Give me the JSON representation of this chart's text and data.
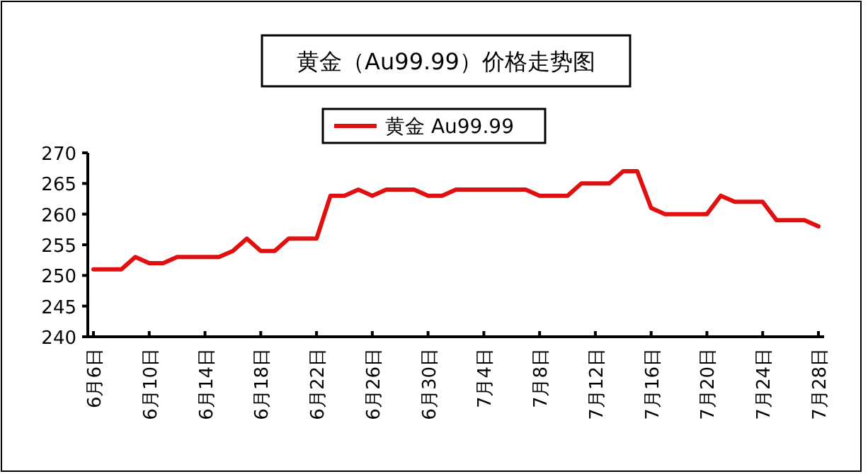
{
  "chart_data": {
    "type": "line",
    "title": "黄金（Au99.99）价格走势图",
    "categories": [
      "6月6日",
      null,
      null,
      null,
      "6月10日",
      null,
      null,
      null,
      "6月14日",
      null,
      null,
      null,
      "6月18日",
      null,
      null,
      null,
      "6月22日",
      null,
      null,
      null,
      "6月26日",
      null,
      null,
      null,
      "6月30日",
      null,
      null,
      null,
      "7月4日",
      null,
      null,
      null,
      "7月8日",
      null,
      null,
      null,
      "7月12日",
      null,
      null,
      null,
      "7月16日",
      null,
      null,
      null,
      "7月20日",
      null,
      null,
      null,
      "7月24日",
      null,
      null,
      null,
      "7月28日"
    ],
    "series": [
      {
        "name": "黄金 Au99.99",
        "color": "#e01010",
        "values": [
          251,
          251,
          251,
          253,
          252,
          252,
          253,
          253,
          253,
          253,
          254,
          256,
          254,
          254,
          256,
          256,
          256,
          263,
          263,
          264,
          263,
          264,
          264,
          264,
          263,
          263,
          264,
          264,
          264,
          264,
          264,
          264,
          263,
          263,
          263,
          265,
          265,
          265,
          267,
          267,
          261,
          260,
          260,
          260,
          260,
          263,
          262,
          262,
          262,
          259,
          259,
          259,
          258
        ]
      }
    ],
    "ylim": [
      240,
      270
    ],
    "yticks": [
      240,
      245,
      250,
      255,
      260,
      265,
      270
    ],
    "legend": "top",
    "marker": "none",
    "line_style": "solid"
  }
}
